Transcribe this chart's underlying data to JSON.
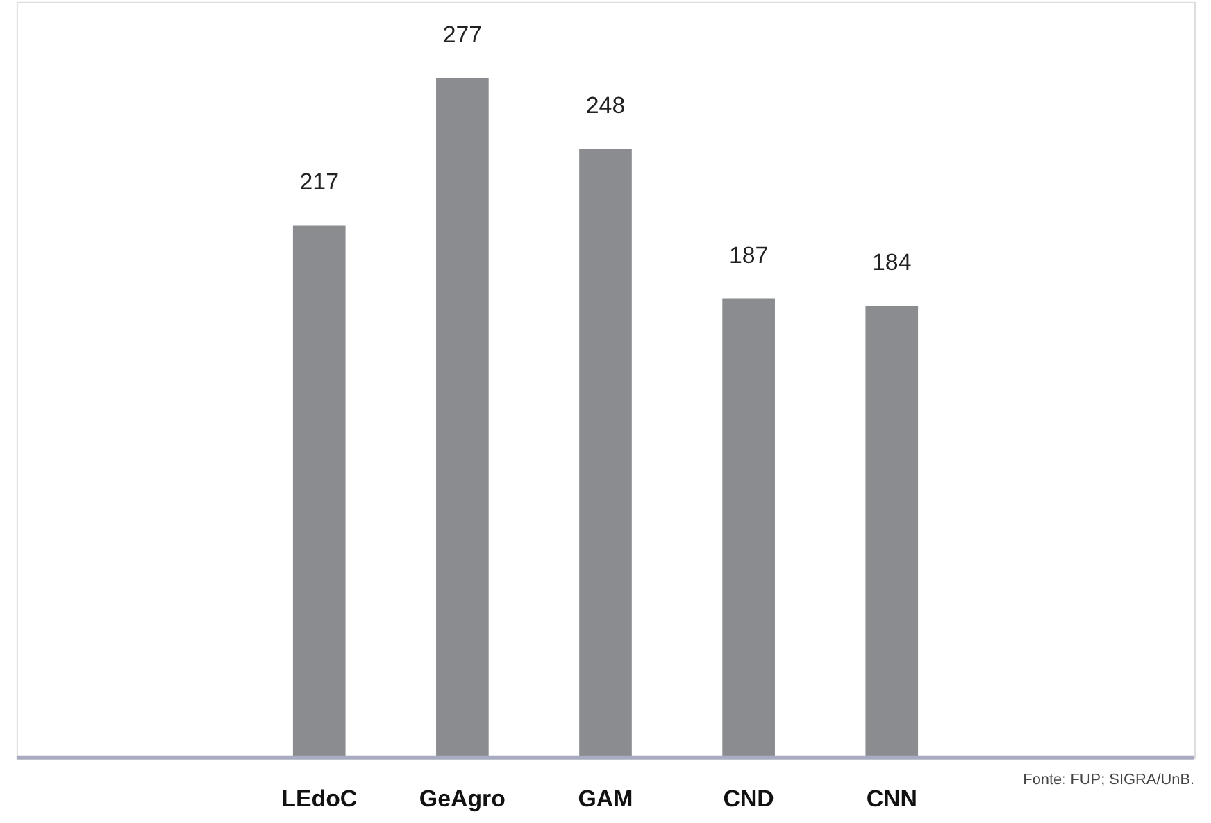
{
  "chart_data": {
    "type": "bar",
    "categories": [
      "LEdoC",
      "GeAgro",
      "GAM",
      "CND",
      "CNN"
    ],
    "values": [
      217,
      277,
      248,
      187,
      184
    ],
    "color": "#8a8c90",
    "ylim": [
      0,
      308
    ],
    "data_labels": true,
    "tick_labels": "x",
    "grid": false,
    "annotations": [
      "Fonte: FUP; SIGRA/UnB."
    ]
  }
}
